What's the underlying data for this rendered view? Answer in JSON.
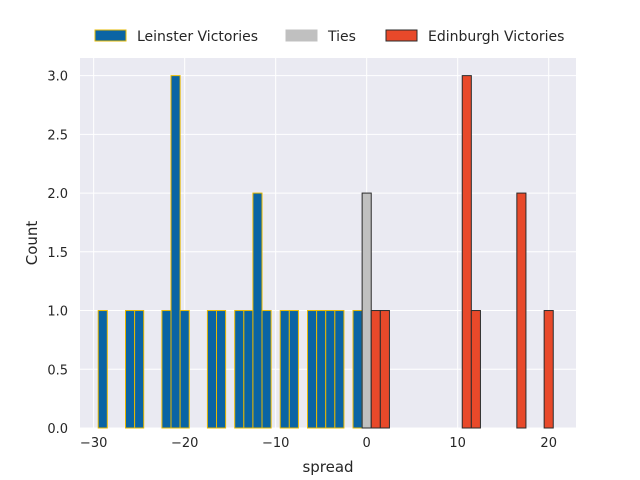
{
  "chart_data": {
    "type": "bar",
    "title": "",
    "xlabel": "spread",
    "ylabel": "Count",
    "xlim": [
      -31.5,
      23
    ],
    "ylim": [
      0,
      3.15
    ],
    "bin_width": 1,
    "x_ticks": [
      -30,
      -20,
      -10,
      0,
      10,
      20
    ],
    "x_tick_labels": [
      "−30",
      "−20",
      "−10",
      "0",
      "10",
      "20"
    ],
    "y_ticks": [
      0,
      0.5,
      1,
      1.5,
      2,
      2.5,
      3
    ],
    "y_tick_labels": [
      "0.0",
      "0.5",
      "1.0",
      "1.5",
      "2.0",
      "2.5",
      "3.0"
    ],
    "grid": true,
    "background": "#eaeaf2",
    "legend_position": "top-center",
    "series": [
      {
        "name": "Leinster Victories",
        "color": "#0a64a4",
        "edge_color": "#e6b800",
        "points": [
          {
            "x": -29,
            "count": 1
          },
          {
            "x": -26,
            "count": 1
          },
          {
            "x": -25,
            "count": 1
          },
          {
            "x": -22,
            "count": 1
          },
          {
            "x": -21,
            "count": 3
          },
          {
            "x": -20,
            "count": 1
          },
          {
            "x": -17,
            "count": 1
          },
          {
            "x": -16,
            "count": 1
          },
          {
            "x": -14,
            "count": 1
          },
          {
            "x": -13,
            "count": 1
          },
          {
            "x": -12,
            "count": 2
          },
          {
            "x": -11,
            "count": 1
          },
          {
            "x": -9,
            "count": 1
          },
          {
            "x": -8,
            "count": 1
          },
          {
            "x": -6,
            "count": 1
          },
          {
            "x": -5,
            "count": 1
          },
          {
            "x": -4,
            "count": 1
          },
          {
            "x": -3,
            "count": 1
          },
          {
            "x": -1,
            "count": 1
          }
        ]
      },
      {
        "name": "Ties",
        "color": "#c0c0c0",
        "edge_color": "#2b2b2b",
        "points": [
          {
            "x": 0,
            "count": 2
          }
        ]
      },
      {
        "name": "Edinburgh Victories",
        "color": "#e8492a",
        "edge_color": "#2b2b2b",
        "points": [
          {
            "x": 1,
            "count": 1
          },
          {
            "x": 2,
            "count": 1
          },
          {
            "x": 11,
            "count": 3
          },
          {
            "x": 12,
            "count": 1
          },
          {
            "x": 17,
            "count": 2
          },
          {
            "x": 20,
            "count": 1
          }
        ]
      }
    ]
  }
}
